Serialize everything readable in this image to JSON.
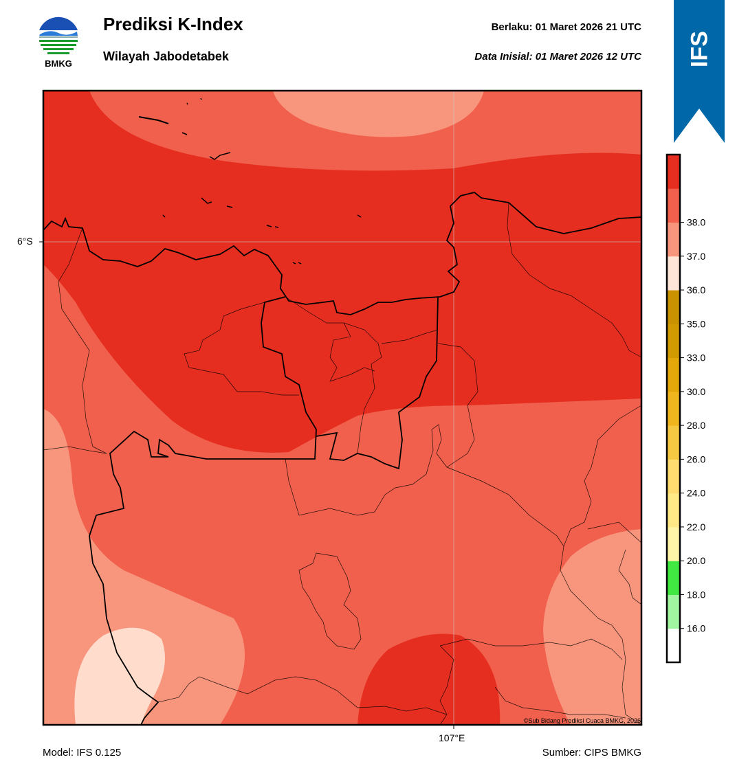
{
  "header": {
    "title": "Prediksi K-Index",
    "subtitle": "Wilayah Jabodetabek",
    "valid_label": "Berlaku:  01 Maret 2026 21 UTC",
    "init_label": "Data Inisial:  01 Maret 2026 12 UTC"
  },
  "logo": {
    "text": "BMKG",
    "icon": "bmkg-logo-icon"
  },
  "ribbon": {
    "text": "IFS",
    "color": "#0068a8"
  },
  "map": {
    "lat_label": "6°S",
    "lon_label": "107°E",
    "copyright": "©Sub Bidang Prediksi Cuaca BMKG, 2026"
  },
  "footer": {
    "model": "Model: IFS 0.125",
    "source": "Sumber: CIPS BMKG"
  },
  "colorbar": {
    "colors": [
      "#ffffff",
      "#a0f5a0",
      "#42e842",
      "#fff5a8",
      "#ffe987",
      "#ffdb70",
      "#f5ca42",
      "#f0b61e",
      "#e5a80a",
      "#d09a00",
      "#c89200",
      "#ffe4d8",
      "#f8957d",
      "#f0604c",
      "#e52e20"
    ],
    "ticks": [
      "16.0",
      "18.0",
      "20.0",
      "22.0",
      "24.0",
      "26.0",
      "28.0",
      "30.0",
      "33.0",
      "35.0",
      "36.0",
      "37.0",
      "38.0"
    ]
  },
  "legend_colors": {
    "band_38": "#e52e20",
    "band_37": "#f0604c",
    "band_36": "#f8957d",
    "band_35": "#ffdccb"
  }
}
